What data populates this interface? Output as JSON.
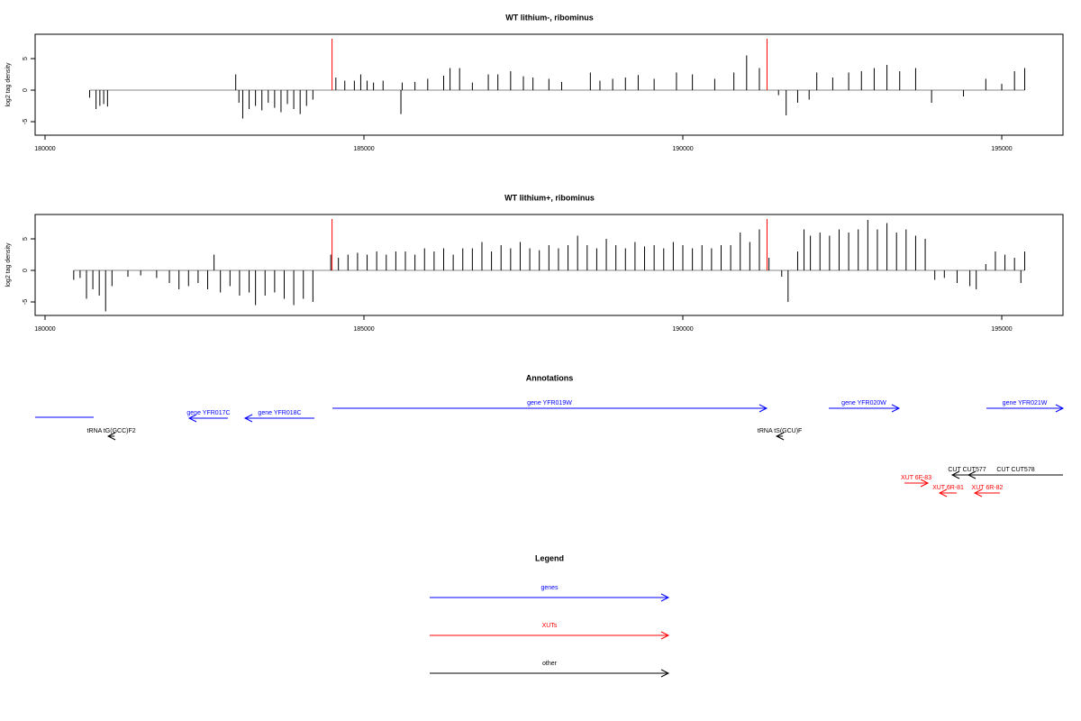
{
  "chart_data": [
    {
      "type": "bar",
      "title": "WT lithium-, ribominus",
      "y_label": "log2 tag density",
      "x": [
        180700,
        180800,
        180860,
        180920,
        180980,
        182990,
        183040,
        183100,
        183200,
        183300,
        183400,
        183500,
        183600,
        183700,
        183800,
        183900,
        184000,
        184100,
        184200,
        184560,
        184700,
        184850,
        184950,
        185050,
        185150,
        185300,
        185580,
        185600,
        185800,
        186000,
        186250,
        186350,
        186500,
        186700,
        186950,
        187100,
        187300,
        187500,
        187650,
        187900,
        188100,
        188550,
        188700,
        188900,
        189100,
        189300,
        189550,
        189900,
        190150,
        190500,
        190800,
        191000,
        191200,
        191500,
        191620,
        191800,
        191980,
        192100,
        192350,
        192600,
        192800,
        193000,
        193200,
        193400,
        193650,
        193900,
        194400,
        194750,
        195000,
        195200,
        195360
      ],
      "values": [
        -1.2,
        -3,
        -2.5,
        -2.2,
        -2.6,
        2.5,
        -2,
        -4.5,
        -3,
        -2.5,
        -3.2,
        -2,
        -2.8,
        -3.5,
        -2.2,
        -3,
        -3.8,
        -2.5,
        -1.5,
        2,
        1.5,
        1.5,
        2.5,
        1.5,
        1.2,
        1.5,
        -3.8,
        1.2,
        1.3,
        1.8,
        2.3,
        3.5,
        3.5,
        1.2,
        2.5,
        2.5,
        3,
        2.2,
        2,
        1.8,
        1.3,
        2.8,
        1.5,
        1.8,
        2,
        2.4,
        1.8,
        2.8,
        2.5,
        1.8,
        2.8,
        5.5,
        3.5,
        -0.8,
        -4,
        -2,
        -1.5,
        2.8,
        2,
        2.8,
        3,
        3.5,
        4,
        3,
        3.5,
        -2,
        -1,
        1.8,
        1,
        3,
        3.5
      ],
      "color": "#000000",
      "markers": [
        184500,
        191320
      ],
      "marker_color": "#ff0000",
      "xlim": [
        179845,
        195960
      ],
      "xticks": [
        180000,
        185000,
        190000,
        195000
      ],
      "ylim": [
        -7.14,
        8.86
      ],
      "yticks": [
        -5,
        0,
        5
      ]
    },
    {
      "type": "bar",
      "title": "WT lithium+, ribominus",
      "y_label": "log2 tag density",
      "x": [
        180450,
        180550,
        180650,
        180750,
        180850,
        180950,
        181050,
        181300,
        181500,
        181750,
        181950,
        182100,
        182250,
        182400,
        182550,
        182650,
        182750,
        182900,
        183050,
        183200,
        183300,
        183450,
        183600,
        183750,
        183900,
        184050,
        184200,
        184480,
        184600,
        184750,
        184900,
        185050,
        185200,
        185350,
        185500,
        185650,
        185800,
        185950,
        186100,
        186250,
        186400,
        186550,
        186700,
        186850,
        187000,
        187150,
        187300,
        187450,
        187600,
        187750,
        187900,
        188050,
        188200,
        188350,
        188500,
        188650,
        188800,
        188950,
        189100,
        189250,
        189400,
        189550,
        189700,
        189850,
        190000,
        190150,
        190300,
        190450,
        190600,
        190750,
        190900,
        191050,
        191200,
        191350,
        191550,
        191650,
        191800,
        191900,
        192000,
        192150,
        192300,
        192450,
        192600,
        192750,
        192900,
        193050,
        193200,
        193350,
        193500,
        193650,
        193800,
        193950,
        194100,
        194300,
        194500,
        194600,
        194750,
        194900,
        195050,
        195200,
        195300,
        195360
      ],
      "values": [
        -1.5,
        -1.2,
        -4.5,
        -3,
        -4,
        -6.5,
        -2.5,
        -1,
        -0.8,
        -1.2,
        -2,
        -3,
        -2.5,
        -2,
        -3,
        2.5,
        -3.5,
        -2.5,
        -4,
        -3.5,
        -5.5,
        -4,
        -3.5,
        -4.5,
        -5.5,
        -4.5,
        -5,
        2.5,
        2,
        2.5,
        2.8,
        2.5,
        3,
        2.5,
        3,
        3,
        2.5,
        3.5,
        3,
        3.5,
        2.5,
        3.5,
        3.5,
        4.5,
        3,
        4,
        3.5,
        4.5,
        3.5,
        3.2,
        4,
        3.5,
        4,
        5.5,
        4,
        3.5,
        5,
        4,
        3.5,
        4.5,
        3.8,
        4,
        3.5,
        4.5,
        4,
        3.5,
        4,
        3.5,
        4,
        4,
        6,
        4.5,
        6.5,
        2,
        -1,
        -5,
        3,
        6.5,
        5.5,
        6,
        5.5,
        6.5,
        6,
        6.5,
        8,
        6.5,
        7.5,
        6,
        6.5,
        5.5,
        5,
        -1.5,
        -1.2,
        -2,
        -2.5,
        -3,
        1,
        3,
        2.5,
        2,
        -2,
        3
      ],
      "color": "#000000",
      "markers": [
        184500,
        191320
      ],
      "marker_color": "#ff0000",
      "xlim": [
        179845,
        195960
      ],
      "xticks": [
        180000,
        185000,
        190000,
        195000
      ],
      "ylim": [
        -7.14,
        8.86
      ],
      "yticks": [
        -5,
        0,
        5
      ]
    }
  ],
  "annotations": {
    "title": "Annotations",
    "features": [
      {
        "label": null,
        "start": 179845,
        "end": 180763,
        "strand": null,
        "color": "#0000ff"
      },
      {
        "label": "gene YFR017C",
        "start": 182260,
        "end": 182867,
        "strand": "-",
        "color": "#0000ff"
      },
      {
        "label": "gene YFR018C",
        "start": 183136,
        "end": 184223,
        "strand": "-",
        "color": "#0000ff"
      },
      {
        "label": "gene YFR019W",
        "start": 184506,
        "end": 191313,
        "strand": "+",
        "color": "#0000ff"
      },
      {
        "label": "gene YFR020W",
        "start": 192288,
        "end": 193390,
        "strand": "+",
        "color": "#0000ff"
      },
      {
        "label": "gene YFR021W",
        "start": 194760,
        "end": 195960,
        "strand": "+",
        "color": "#0000ff"
      },
      {
        "label": "tRNA tG(GCC)F2",
        "start": 180990,
        "end": 181090,
        "strand": "-",
        "color": "#000000"
      },
      {
        "label": "tRNA tS(GCU)F",
        "start": 191470,
        "end": 191570,
        "strand": "-",
        "color": "#000000"
      },
      {
        "label": "CUT CUT577",
        "start": 194223,
        "end": 194689,
        "strand": "-",
        "color": "#000000"
      },
      {
        "label": "CUT CUT578",
        "start": 194477,
        "end": 195960,
        "strand": "-",
        "color": "#000000"
      },
      {
        "label": "XUT 6F-83",
        "start": 193475,
        "end": 193842,
        "strand": "+",
        "color": "#ff0000"
      },
      {
        "label": "XUT 6R-81",
        "start": 194025,
        "end": 194294,
        "strand": "-",
        "color": "#ff0000"
      },
      {
        "label": "XUT 6R-82",
        "start": 194576,
        "end": 194971,
        "strand": "-",
        "color": "#ff0000"
      }
    ]
  },
  "legend": {
    "title": "Legend",
    "items": [
      {
        "label": "genes",
        "color": "#0000ff"
      },
      {
        "label": "XUTs",
        "color": "#ff0000"
      },
      {
        "label": "other",
        "color": "#000000"
      }
    ]
  }
}
